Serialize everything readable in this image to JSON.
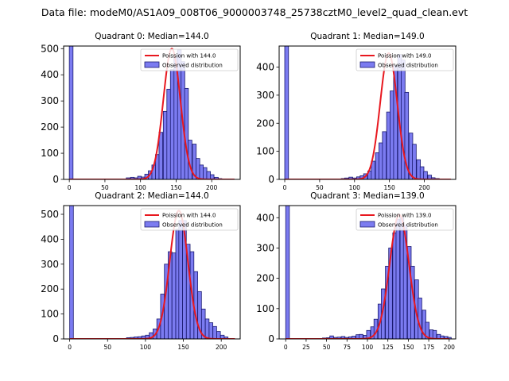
{
  "figure_title": "Data file: modeM0/AS1A09_008T06_9000003748_25738cztM0_level2_quad_clean.evt",
  "colors": {
    "bar_fill": "#7b7bf0",
    "bar_edge": "#1a1a70",
    "curve": "#e8181f"
  },
  "chart_data": [
    {
      "type": "bar",
      "title": "Quadrant 0: Median=144.0",
      "legend": {
        "curve_label": "Poission with 144.0",
        "hist_label": "Observed distribution",
        "placement": "top-right"
      },
      "xlim": [
        -8,
        240
      ],
      "ylim": [
        0,
        510
      ],
      "xticks": [
        0,
        50,
        100,
        150,
        200
      ],
      "yticks": [
        0,
        100,
        200,
        300,
        400,
        500
      ],
      "bin_width": 5.2,
      "bins": [
        [
          0,
          510
        ],
        [
          80,
          6
        ],
        [
          86,
          8
        ],
        [
          91,
          6
        ],
        [
          96,
          12
        ],
        [
          101,
          9
        ],
        [
          106,
          20
        ],
        [
          111,
          33
        ],
        [
          116,
          55
        ],
        [
          121,
          95
        ],
        [
          126,
          180
        ],
        [
          132,
          260
        ],
        [
          137,
          345
        ],
        [
          142,
          420
        ],
        [
          147,
          470
        ],
        [
          152,
          495
        ],
        [
          157,
          450
        ],
        [
          162,
          348
        ],
        [
          167,
          150
        ],
        [
          173,
          135
        ],
        [
          178,
          80
        ],
        [
          183,
          55
        ],
        [
          188,
          45
        ],
        [
          193,
          30
        ],
        [
          198,
          18
        ],
        [
          204,
          8
        ],
        [
          209,
          3
        ]
      ],
      "poisson_mean": 144.0,
      "curve_peak": 500,
      "curve_x_range": [
        0,
        232
      ]
    },
    {
      "type": "bar",
      "title": "Quadrant 1: Median=149.0",
      "legend": {
        "curve_label": "Poission with 149.0",
        "hist_label": "Observed distribution",
        "placement": "top-right"
      },
      "xlim": [
        -8,
        245
      ],
      "ylim": [
        0,
        475
      ],
      "xticks": [
        0,
        50,
        100,
        150,
        200
      ],
      "yticks": [
        0,
        100,
        200,
        300,
        400
      ],
      "bin_width": 5.4,
      "bins": [
        [
          0,
          475
        ],
        [
          81,
          3
        ],
        [
          86,
          5
        ],
        [
          92,
          8
        ],
        [
          97,
          5
        ],
        [
          103,
          9
        ],
        [
          108,
          13
        ],
        [
          113,
          20
        ],
        [
          119,
          30
        ],
        [
          124,
          65
        ],
        [
          130,
          95
        ],
        [
          135,
          130
        ],
        [
          140,
          170
        ],
        [
          146,
          240
        ],
        [
          151,
          315
        ],
        [
          156,
          405
        ],
        [
          162,
          445
        ],
        [
          167,
          425
        ],
        [
          172,
          310
        ],
        [
          178,
          165
        ],
        [
          183,
          125
        ],
        [
          189,
          70
        ],
        [
          194,
          45
        ],
        [
          199,
          28
        ],
        [
          205,
          15
        ],
        [
          210,
          6
        ],
        [
          216,
          3
        ]
      ],
      "poisson_mean": 149.0,
      "curve_peak": 450,
      "curve_x_range": [
        0,
        238
      ]
    },
    {
      "type": "bar",
      "title": "Quadrant 2: Median=144.0",
      "legend": {
        "curve_label": "Poission with 144.0",
        "hist_label": "Observed distribution",
        "placement": "top-right"
      },
      "xlim": [
        -8,
        225
      ],
      "ylim": [
        0,
        535
      ],
      "xticks": [
        0,
        50,
        100,
        150,
        200
      ],
      "yticks": [
        0,
        100,
        200,
        300,
        400,
        500
      ],
      "bin_width": 4.9,
      "bins": [
        [
          0,
          535
        ],
        [
          75,
          5
        ],
        [
          80,
          6
        ],
        [
          85,
          8
        ],
        [
          90,
          9
        ],
        [
          95,
          12
        ],
        [
          100,
          15
        ],
        [
          105,
          25
        ],
        [
          110,
          40
        ],
        [
          115,
          80
        ],
        [
          120,
          180
        ],
        [
          125,
          300
        ],
        [
          130,
          350
        ],
        [
          135,
          345
        ],
        [
          140,
          440
        ],
        [
          144,
          475
        ],
        [
          149,
          475
        ],
        [
          154,
          380
        ],
        [
          159,
          350
        ],
        [
          164,
          270
        ],
        [
          169,
          190
        ],
        [
          174,
          120
        ],
        [
          179,
          80
        ],
        [
          184,
          65
        ],
        [
          189,
          50
        ],
        [
          194,
          30
        ],
        [
          199,
          15
        ],
        [
          204,
          8
        ]
      ],
      "poisson_mean": 144.0,
      "curve_peak": 515,
      "curve_x_range": [
        0,
        218
      ]
    },
    {
      "type": "bar",
      "title": "Quadrant 3: Median=139.0",
      "legend": {
        "curve_label": "Poission with 139.0",
        "hist_label": "Observed distribution",
        "placement": "top-right"
      },
      "xlim": [
        -8,
        208
      ],
      "ylim": [
        0,
        440
      ],
      "xticks": [
        0,
        25,
        50,
        75,
        100,
        125,
        150,
        175,
        200
      ],
      "yticks": [
        0,
        100,
        200,
        300,
        400
      ],
      "bin_width": 4.5,
      "bins": [
        [
          0,
          440
        ],
        [
          45,
          3
        ],
        [
          50,
          4
        ],
        [
          54,
          10
        ],
        [
          59,
          5
        ],
        [
          63,
          6
        ],
        [
          68,
          8
        ],
        [
          72,
          5
        ],
        [
          77,
          7
        ],
        [
          81,
          9
        ],
        [
          86,
          14
        ],
        [
          90,
          15
        ],
        [
          95,
          12
        ],
        [
          99,
          28
        ],
        [
          104,
          40
        ],
        [
          108,
          65
        ],
        [
          113,
          115
        ],
        [
          117,
          165
        ],
        [
          122,
          240
        ],
        [
          126,
          300
        ],
        [
          131,
          350
        ],
        [
          135,
          395
        ],
        [
          140,
          400
        ],
        [
          144,
          375
        ],
        [
          149,
          305
        ],
        [
          153,
          240
        ],
        [
          158,
          195
        ],
        [
          162,
          135
        ],
        [
          167,
          95
        ],
        [
          171,
          55
        ],
        [
          176,
          30
        ],
        [
          180,
          28
        ],
        [
          185,
          15
        ],
        [
          189,
          10
        ],
        [
          194,
          8
        ],
        [
          198,
          5
        ]
      ],
      "poisson_mean": 139.0,
      "curve_peak": 410,
      "curve_x_range": [
        0,
        200
      ]
    }
  ]
}
